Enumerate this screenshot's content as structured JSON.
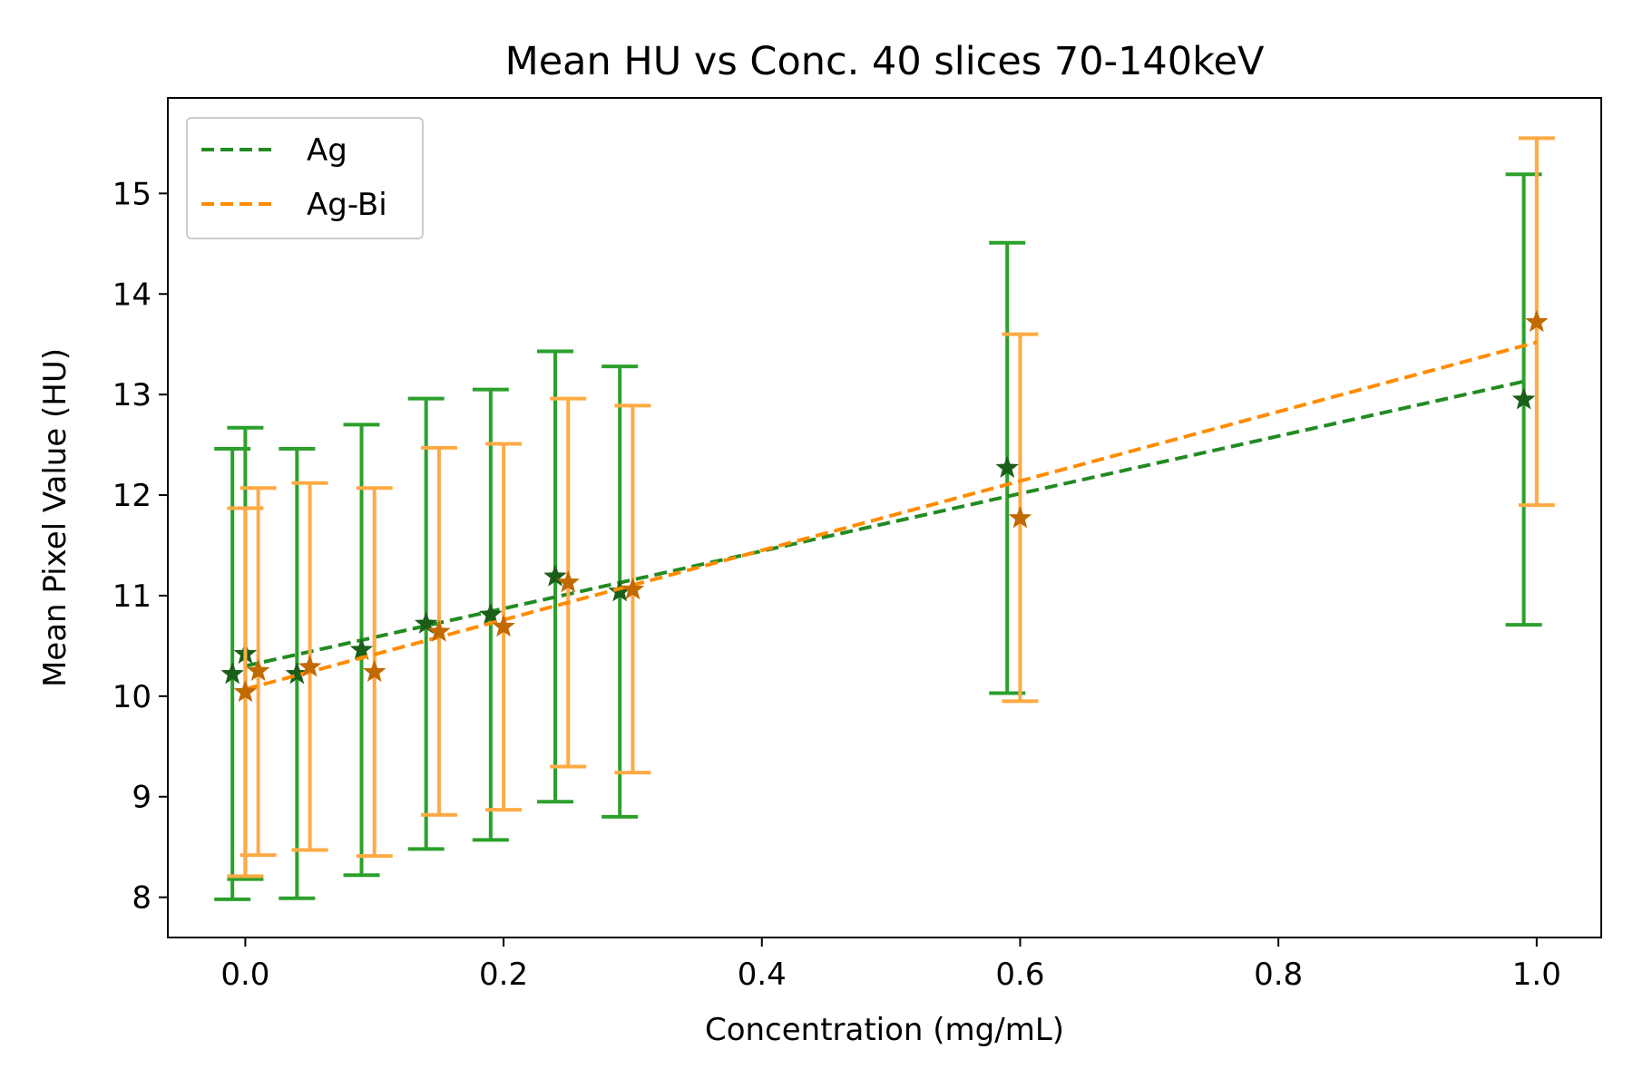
{
  "chart_data": {
    "type": "scatter",
    "title": "Mean HU vs Conc. 40 slices 70-140keV",
    "xlabel": "Concentration (mg/mL)",
    "ylabel": "Mean Pixel Value (HU)",
    "xlim": [
      -0.06,
      1.05
    ],
    "ylim": [
      7.6,
      15.95
    ],
    "xticks": [
      0.0,
      0.2,
      0.4,
      0.6,
      0.8,
      1.0
    ],
    "xtick_labels": [
      "0.0",
      "0.2",
      "0.4",
      "0.6",
      "0.8",
      "1.0"
    ],
    "yticks": [
      8,
      9,
      10,
      11,
      12,
      13,
      14,
      15
    ],
    "ytick_labels": [
      "8",
      "9",
      "10",
      "11",
      "12",
      "13",
      "14",
      "15"
    ],
    "grid": false,
    "legend_position": "upper-left",
    "series": [
      {
        "name": "Ag",
        "line_color": "#228b22",
        "errorbar_color": "#2ca02c",
        "marker_color": "#1a5e1a",
        "marker": "star",
        "points": [
          {
            "x": -0.01,
            "y": 10.22,
            "ylow": 7.98,
            "yhigh": 12.46
          },
          {
            "x": 0.0,
            "y": 10.42,
            "ylow": 8.18,
            "yhigh": 12.67
          },
          {
            "x": 0.04,
            "y": 10.22,
            "ylow": 7.99,
            "yhigh": 12.46
          },
          {
            "x": 0.09,
            "y": 10.46,
            "ylow": 8.22,
            "yhigh": 12.7
          },
          {
            "x": 0.14,
            "y": 10.72,
            "ylow": 8.48,
            "yhigh": 12.96
          },
          {
            "x": 0.19,
            "y": 10.81,
            "ylow": 8.57,
            "yhigh": 13.05
          },
          {
            "x": 0.24,
            "y": 11.19,
            "ylow": 8.95,
            "yhigh": 13.43
          },
          {
            "x": 0.29,
            "y": 11.04,
            "ylow": 8.8,
            "yhigh": 13.28
          },
          {
            "x": 0.59,
            "y": 12.27,
            "ylow": 10.03,
            "yhigh": 14.51
          },
          {
            "x": 0.99,
            "y": 12.95,
            "ylow": 10.71,
            "yhigh": 15.19
          }
        ],
        "fit": {
          "x": [
            0.0,
            0.99
          ],
          "y": [
            10.3,
            13.13
          ]
        }
      },
      {
        "name": "Ag-Bi",
        "line_color": "#ff8c00",
        "errorbar_color": "#ffaa44",
        "marker_color": "#c06a00",
        "marker": "star",
        "points": [
          {
            "x": 0.0,
            "y": 10.04,
            "ylow": 8.21,
            "yhigh": 11.87
          },
          {
            "x": 0.01,
            "y": 10.25,
            "ylow": 8.42,
            "yhigh": 12.07
          },
          {
            "x": 0.05,
            "y": 10.29,
            "ylow": 8.47,
            "yhigh": 12.12
          },
          {
            "x": 0.1,
            "y": 10.24,
            "ylow": 8.41,
            "yhigh": 12.07
          },
          {
            "x": 0.15,
            "y": 10.64,
            "ylow": 8.82,
            "yhigh": 12.47
          },
          {
            "x": 0.2,
            "y": 10.69,
            "ylow": 8.87,
            "yhigh": 12.51
          },
          {
            "x": 0.25,
            "y": 11.13,
            "ylow": 9.3,
            "yhigh": 12.96
          },
          {
            "x": 0.3,
            "y": 11.06,
            "ylow": 9.24,
            "yhigh": 12.89
          },
          {
            "x": 0.6,
            "y": 11.77,
            "ylow": 9.95,
            "yhigh": 13.6
          },
          {
            "x": 1.0,
            "y": 13.72,
            "ylow": 11.9,
            "yhigh": 15.55
          }
        ],
        "fit": {
          "x": [
            0.0,
            1.0
          ],
          "y": [
            10.07,
            13.52
          ]
        }
      }
    ]
  }
}
